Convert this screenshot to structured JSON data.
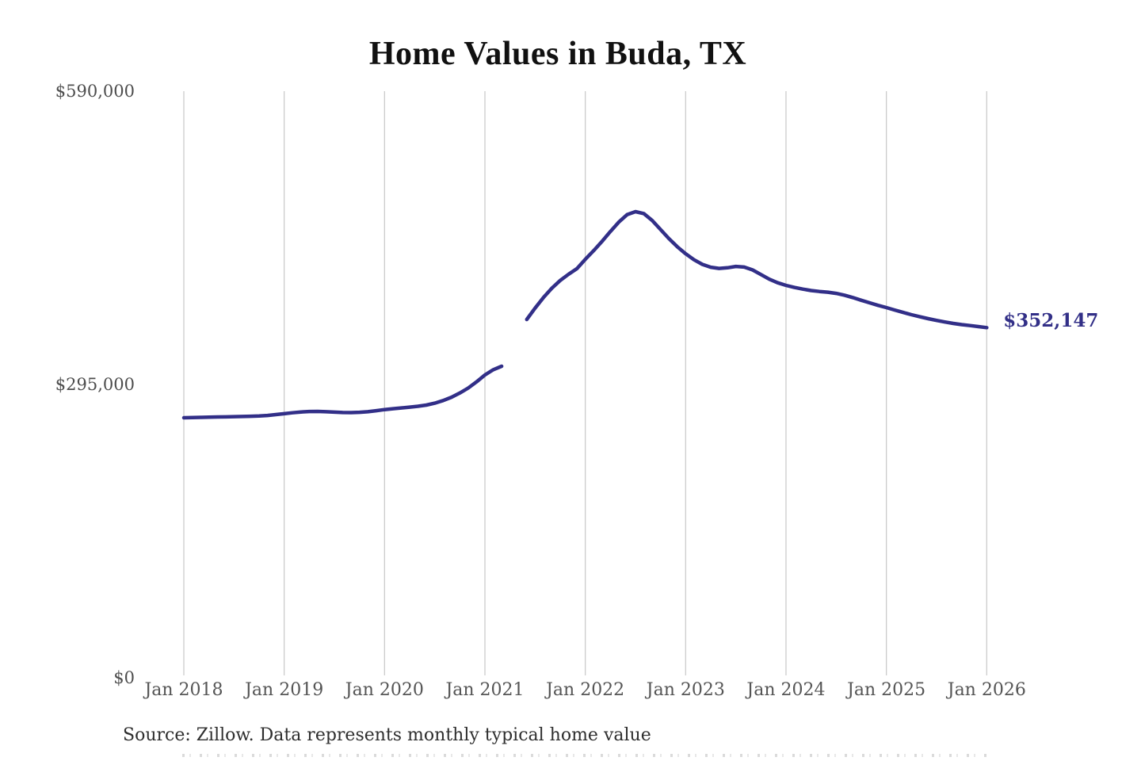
{
  "chart": {
    "source_note": "Source: Zillow. Data represents monthly typical home value",
    "colors": {
      "line": "#322f88",
      "grid": "#cccccc",
      "title_text": "#111111",
      "axis_text": "#4d4d4d",
      "source_text": "#2e2e2e",
      "annotation_text": "#322f87",
      "background": "#ffffff"
    }
  },
  "chart_data": {
    "type": "line",
    "title": "Home Values in Buda, TX",
    "xlabel": "",
    "ylabel": "",
    "x_start": "2018-01",
    "x_end": "2026-01",
    "frequency": "monthly",
    "x_tick_labels": [
      "Jan 2018",
      "Jan 2019",
      "Jan 2020",
      "Jan 2021",
      "Jan 2022",
      "Jan 2023",
      "Jan 2024",
      "Jan 2025",
      "Jan 2026"
    ],
    "y_tick_labels": [
      "$590,000",
      "$295,000",
      "$0"
    ],
    "y_ticks": [
      590000,
      295000,
      0
    ],
    "ylim": [
      0,
      590000
    ],
    "grid": "vertical-only",
    "legend": "none",
    "gap": "no data plotted for Apr 2021 and May 2021",
    "annotation": {
      "text": "$352,147",
      "value": 352147,
      "position": "line-end"
    },
    "series": [
      {
        "name": "Typical home value",
        "values": [
          261500,
          261700,
          261900,
          262100,
          262300,
          262400,
          262600,
          262800,
          263000,
          263300,
          263800,
          264700,
          265600,
          266500,
          267300,
          267800,
          267900,
          267600,
          267200,
          266800,
          266700,
          267000,
          267600,
          268600,
          269700,
          270600,
          271400,
          272200,
          273100,
          274300,
          276200,
          278800,
          282200,
          286400,
          291400,
          297600,
          304600,
          309800,
          313300,
          null,
          null,
          360400,
          371800,
          382500,
          391800,
          399600,
          405800,
          411500,
          420800,
          429600,
          438900,
          448800,
          458300,
          465800,
          468800,
          466900,
          460000,
          450900,
          441700,
          433500,
          426500,
          420400,
          415800,
          412900,
          411700,
          412400,
          413700,
          413100,
          410200,
          405600,
          400900,
          397300,
          394700,
          392600,
          390900,
          389500,
          388500,
          387800,
          386600,
          384800,
          382400,
          379700,
          377100,
          374600,
          372300,
          369900,
          367500,
          365200,
          363100,
          361200,
          359400,
          357800,
          356400,
          355200,
          354200,
          353200,
          352147
        ]
      }
    ]
  }
}
